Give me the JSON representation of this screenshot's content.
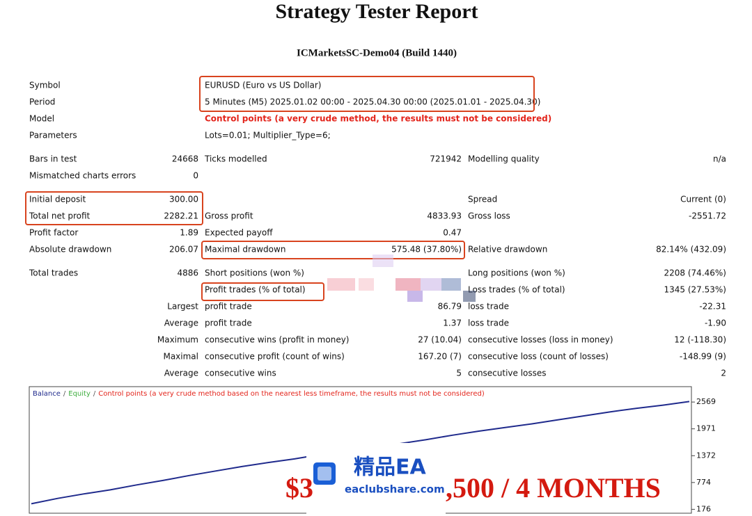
{
  "header": {
    "title": "Strategy Tester Report",
    "subtitle": "ICMarketsSC-Demo04 (Build 1440)"
  },
  "info": [
    {
      "label": "Symbol",
      "value": "EURUSD (Euro vs US Dollar)"
    },
    {
      "label": "Period",
      "value": "5 Minutes (M5) 2025.01.02 00:00 - 2025.04.30 00:00 (2025.01.01 - 2025.04.30)"
    },
    {
      "label": "Model",
      "value": "Control points (a very crude method, the results must not be considered)",
      "color": "#e3241b"
    },
    {
      "label": "Parameters",
      "value": "Lots=0.01; Multiplier_Type=6;"
    }
  ],
  "sections": [
    [
      {
        "c1l": "Bars in test",
        "c1v": "24668",
        "c2l": "Ticks modelled",
        "c2v": "721942",
        "c3l": "Modelling quality",
        "c3v": "n/a"
      },
      {
        "c1l": "Mismatched charts errors",
        "c1v": "0"
      }
    ],
    [
      {
        "c1l": "Initial deposit",
        "c1v": "300.00",
        "c3l": "Spread",
        "c3v": "Current (0)"
      },
      {
        "c1l": "Total net profit",
        "c1v": "2282.21",
        "c2l": "Gross profit",
        "c2v": "4833.93",
        "c3l": "Gross loss",
        "c3v": "-2551.72"
      },
      {
        "c1l": "Profit factor",
        "c1v": "1.89",
        "c2l": "Expected payoff",
        "c2v": "0.47"
      },
      {
        "c1l": "Absolute drawdown",
        "c1v": "206.07",
        "c2l": "Maximal drawdown",
        "c2v": "575.48 (37.80%)",
        "c3l": "Relative drawdown",
        "c3v": "82.14% (432.09)"
      }
    ],
    [
      {
        "c1l": "Total trades",
        "c1v": "4886",
        "c2l": "Short positions (won %)",
        "c3l": "Long positions (won %)",
        "c3v": "2208 (74.46%)"
      },
      {
        "c2l": "Profit trades (% of total)",
        "c3l": "Loss trades (% of total)",
        "c3v": "1345 (27.53%)"
      },
      {
        "c1r": "Largest",
        "c2l": "profit trade",
        "c2v": "86.79",
        "c3l": "loss trade",
        "c3v": "-22.31"
      },
      {
        "c1r": "Average",
        "c2l": "profit trade",
        "c2v": "1.37",
        "c3l": "loss trade",
        "c3v": "-1.90"
      },
      {
        "c1r": "Maximum",
        "c2l": "consecutive wins (profit in money)",
        "c2v": "27 (10.04)",
        "c3l": "consecutive losses (loss in money)",
        "c3v": "12 (-118.30)"
      },
      {
        "c1r": "Maximal",
        "c2l": "consecutive profit (count of wins)",
        "c2v": "167.20 (7)",
        "c3l": "consecutive loss (count of losses)",
        "c3v": "-148.99 (9)"
      },
      {
        "c1r": "Average",
        "c2l": "consecutive wins",
        "c2v": "5",
        "c3l": "consecutive losses",
        "c3v": "2"
      }
    ]
  ],
  "chart": {
    "type": "line",
    "series": [
      {
        "name": "Balance",
        "color": "#1f2a8c",
        "values": [
          300,
          420,
          520,
          610,
          720,
          820,
          930,
          1030,
          1130,
          1220,
          1300,
          1400,
          1480,
          1560,
          1640,
          1730,
          1830,
          1920,
          2000,
          2080,
          2170,
          2260,
          2350,
          2430,
          2500,
          2580
        ]
      }
    ],
    "legend_separator": "/",
    "legend_extra": [
      {
        "name": "Equity",
        "color": "#3fae3f"
      },
      {
        "name": "Control points (a very crude method based on the nearest less timeframe, the results must not be considered)",
        "color": "#e3241b"
      }
    ],
    "ylim": [
      120,
      2850
    ],
    "yticks": [
      176,
      774,
      1372,
      1971,
      2569
    ]
  },
  "overlay": {
    "logo_text": "精品EA",
    "site": "eaclubshare.com",
    "banner_left": "$3",
    "banner_right": ",500 / 4 MONTHS"
  }
}
